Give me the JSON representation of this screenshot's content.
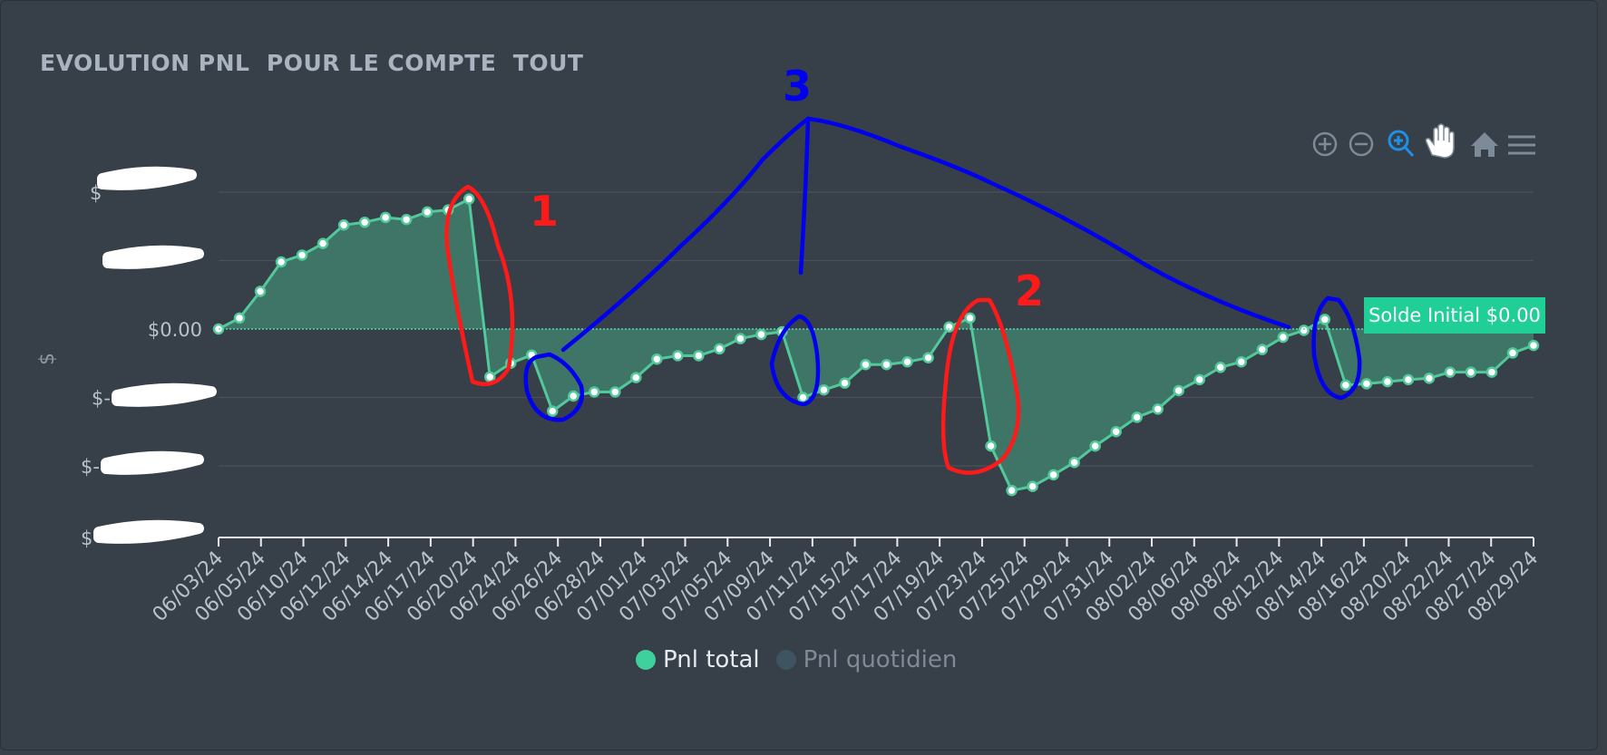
{
  "chart_title": "EVOLUTION PNL  POUR LE COMPTE  TOUT",
  "colors": {
    "line": "#52c99a",
    "area": "#3e7868",
    "zero_line": "#5fd6b0",
    "annotation_bg": "#1fcf96",
    "legend_active": "#3fd19b",
    "legend_inactive": "#3c5561",
    "ink_red": "#ff1a1a",
    "ink_blue": "#0000ee"
  },
  "toolbar": {
    "icons": [
      "zoom-in-icon",
      "zoom-out-icon",
      "selection-zoom-icon",
      "pan-hand-icon",
      "reset-home-icon",
      "menu-icon"
    ]
  },
  "annotation": {
    "label": "Solde Initial $0.00"
  },
  "handwritten_marks": [
    "1",
    "2",
    "3"
  ],
  "chart_data": {
    "type": "area",
    "ylabel": "$",
    "y_ticks": [
      {
        "label": "$",
        "value": 2
      },
      {
        "label": "",
        "value": 1
      },
      {
        "label": "$0.00",
        "value": 0
      },
      {
        "label": "$-",
        "value": -1
      },
      {
        "label": "$-",
        "value": -2
      },
      {
        "label": "$-",
        "value": -3
      }
    ],
    "ylim": [
      -3,
      2
    ],
    "x_tick_labels": [
      "06/03/24",
      "06/05/24",
      "06/10/24",
      "06/12/24",
      "06/14/24",
      "06/17/24",
      "06/20/24",
      "06/24/24",
      "06/26/24",
      "06/28/24",
      "07/01/24",
      "07/03/24",
      "07/05/24",
      "07/09/24",
      "07/11/24",
      "07/15/24",
      "07/17/24",
      "07/19/24",
      "07/23/24",
      "07/25/24",
      "07/29/24",
      "07/31/24",
      "08/02/24",
      "08/06/24",
      "08/08/24",
      "08/12/24",
      "08/14/24",
      "08/16/24",
      "08/20/24",
      "08/22/24",
      "08/27/24",
      "08/29/24"
    ],
    "legend_position": "bottom",
    "grid": true,
    "series": [
      {
        "name": "Pnl total",
        "active": true,
        "values": [
          0,
          0.16,
          0.55,
          0.98,
          1.08,
          1.25,
          1.52,
          1.56,
          1.63,
          1.6,
          1.71,
          1.74,
          1.9,
          -0.7,
          -0.5,
          -0.38,
          -1.2,
          -0.98,
          -0.92,
          -0.92,
          -0.71,
          -0.44,
          -0.39,
          -0.39,
          -0.29,
          -0.14,
          -0.08,
          -0.04,
          -1.0,
          -0.89,
          -0.79,
          -0.52,
          -0.52,
          -0.48,
          -0.42,
          0.03,
          0.16,
          -1.71,
          -2.36,
          -2.3,
          -2.13,
          -1.95,
          -1.71,
          -1.5,
          -1.29,
          -1.17,
          -0.9,
          -0.74,
          -0.56,
          -0.48,
          -0.3,
          -0.12,
          -0.02,
          0.14,
          -0.82,
          -0.8,
          -0.77,
          -0.74,
          -0.72,
          -0.63,
          -0.63,
          -0.63,
          -0.35,
          -0.24
        ]
      },
      {
        "name": "Pnl quotidien",
        "active": false,
        "values": []
      }
    ]
  }
}
